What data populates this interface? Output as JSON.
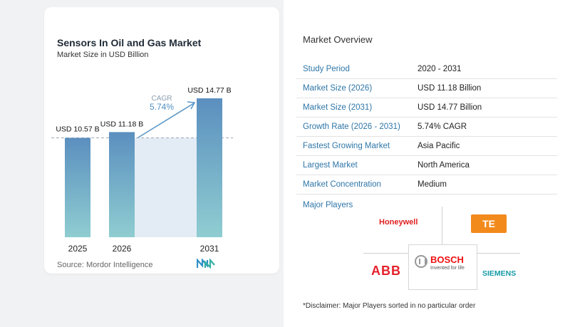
{
  "chart": {
    "title": "Sensors In Oil and Gas Market",
    "subtitle": "Market Size in USD Billion",
    "source": "Source:  Mordor Intelligence",
    "cagr_label": "CAGR",
    "cagr_value": "5.74%"
  },
  "chart_data": {
    "type": "bar",
    "categories": [
      "2025",
      "2026",
      "2031"
    ],
    "values": [
      10.57,
      11.18,
      14.77
    ],
    "data_labels": [
      "USD 10.57 B",
      "USD 11.18 B",
      "USD 14.77 B"
    ],
    "title": "Sensors In Oil and Gas Market",
    "subtitle": "Market Size in USD Billion",
    "xlabel": "",
    "ylabel": "",
    "ylim": [
      0,
      15
    ],
    "grid": false,
    "colors": {
      "bar_top": "#5b8fbf",
      "bar_bottom": "#8fcdd1",
      "shade": "#e3ecf4",
      "arrow": "#5a98c8",
      "dashed": "#9aa9b8"
    }
  },
  "overview": {
    "title": "Market Overview",
    "rows": [
      {
        "label": "Study Period",
        "value": "2020 - 2031"
      },
      {
        "label": "Market Size (2026)",
        "value": "USD 11.18 Billion"
      },
      {
        "label": "Market Size (2031)",
        "value": "USD 14.77 Billion"
      },
      {
        "label": "Growth Rate (2026 - 2031)",
        "value": "5.74% CAGR"
      },
      {
        "label": "Fastest Growing Market",
        "value": "Asia Pacific"
      },
      {
        "label": "Largest Market",
        "value": "North America"
      },
      {
        "label": "Market Concentration",
        "value": "Medium"
      }
    ]
  },
  "players": {
    "title": "Major Players",
    "honeywell": "Honeywell",
    "te": "TE",
    "abb": "ABB",
    "bosch": "BOSCH",
    "bosch_tagline": "Invented for life",
    "siemens": "SIEMENS"
  },
  "disclaimer": "*Disclaimer: Major Players sorted in no particular order",
  "colors": {
    "accent": "#2e76a8",
    "title": "#1f2a36"
  }
}
